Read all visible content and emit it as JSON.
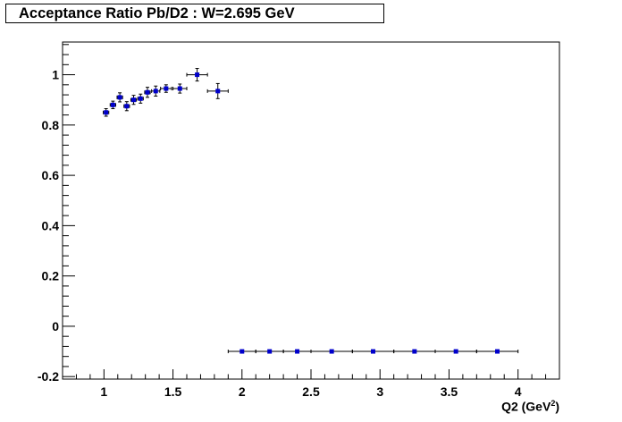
{
  "title": "Acceptance Ratio Pb/D2 : W=2.695 GeV",
  "chart_data": {
    "type": "scatter",
    "title": "Acceptance Ratio Pb/D2 : W=2.695 GeV",
    "xlabel_main": "Q2 (GeV",
    "xlabel_sup": "2",
    "xlabel_close": ")",
    "ylabel": "",
    "xlim": [
      0.7,
      4.3
    ],
    "ylim": [
      -0.21,
      1.13
    ],
    "x_ticks": [
      1,
      1.5,
      2,
      2.5,
      3,
      3.5,
      4
    ],
    "x_tick_labels": [
      "1",
      "1.5",
      "2",
      "2.5",
      "3",
      "3.5",
      "4"
    ],
    "y_ticks": [
      -0.2,
      0,
      0.2,
      0.4,
      0.6,
      0.8,
      1
    ],
    "y_tick_labels": [
      "-0.2",
      "0",
      "0.2",
      "0.4",
      "0.6",
      "0.8",
      "1"
    ],
    "grid": false,
    "marker_color": "#0000cc",
    "error_bar_color": "#000000",
    "points": [
      {
        "x": 1.015,
        "y": 0.85,
        "xerr": 0.02,
        "yerr": 0.015
      },
      {
        "x": 1.065,
        "y": 0.88,
        "xerr": 0.02,
        "yerr": 0.015
      },
      {
        "x": 1.115,
        "y": 0.91,
        "xerr": 0.02,
        "yerr": 0.018
      },
      {
        "x": 1.165,
        "y": 0.875,
        "xerr": 0.02,
        "yerr": 0.018
      },
      {
        "x": 1.215,
        "y": 0.9,
        "xerr": 0.02,
        "yerr": 0.018
      },
      {
        "x": 1.265,
        "y": 0.905,
        "xerr": 0.02,
        "yerr": 0.018
      },
      {
        "x": 1.315,
        "y": 0.93,
        "xerr": 0.02,
        "yerr": 0.02
      },
      {
        "x": 1.375,
        "y": 0.935,
        "xerr": 0.03,
        "yerr": 0.02
      },
      {
        "x": 1.45,
        "y": 0.945,
        "xerr": 0.04,
        "yerr": 0.015
      },
      {
        "x": 1.55,
        "y": 0.945,
        "xerr": 0.05,
        "yerr": 0.018
      },
      {
        "x": 1.675,
        "y": 1.0,
        "xerr": 0.075,
        "yerr": 0.025
      },
      {
        "x": 1.825,
        "y": 0.935,
        "xerr": 0.075,
        "yerr": 0.03
      },
      {
        "x": 2.0,
        "y": -0.1,
        "xerr": 0.1,
        "yerr": 0
      },
      {
        "x": 2.2,
        "y": -0.1,
        "xerr": 0.1,
        "yerr": 0
      },
      {
        "x": 2.4,
        "y": -0.1,
        "xerr": 0.1,
        "yerr": 0
      },
      {
        "x": 2.65,
        "y": -0.1,
        "xerr": 0.15,
        "yerr": 0
      },
      {
        "x": 2.95,
        "y": -0.1,
        "xerr": 0.15,
        "yerr": 0
      },
      {
        "x": 3.25,
        "y": -0.1,
        "xerr": 0.15,
        "yerr": 0
      },
      {
        "x": 3.55,
        "y": -0.1,
        "xerr": 0.15,
        "yerr": 0
      },
      {
        "x": 3.85,
        "y": -0.1,
        "xerr": 0.15,
        "yerr": 0
      }
    ]
  }
}
